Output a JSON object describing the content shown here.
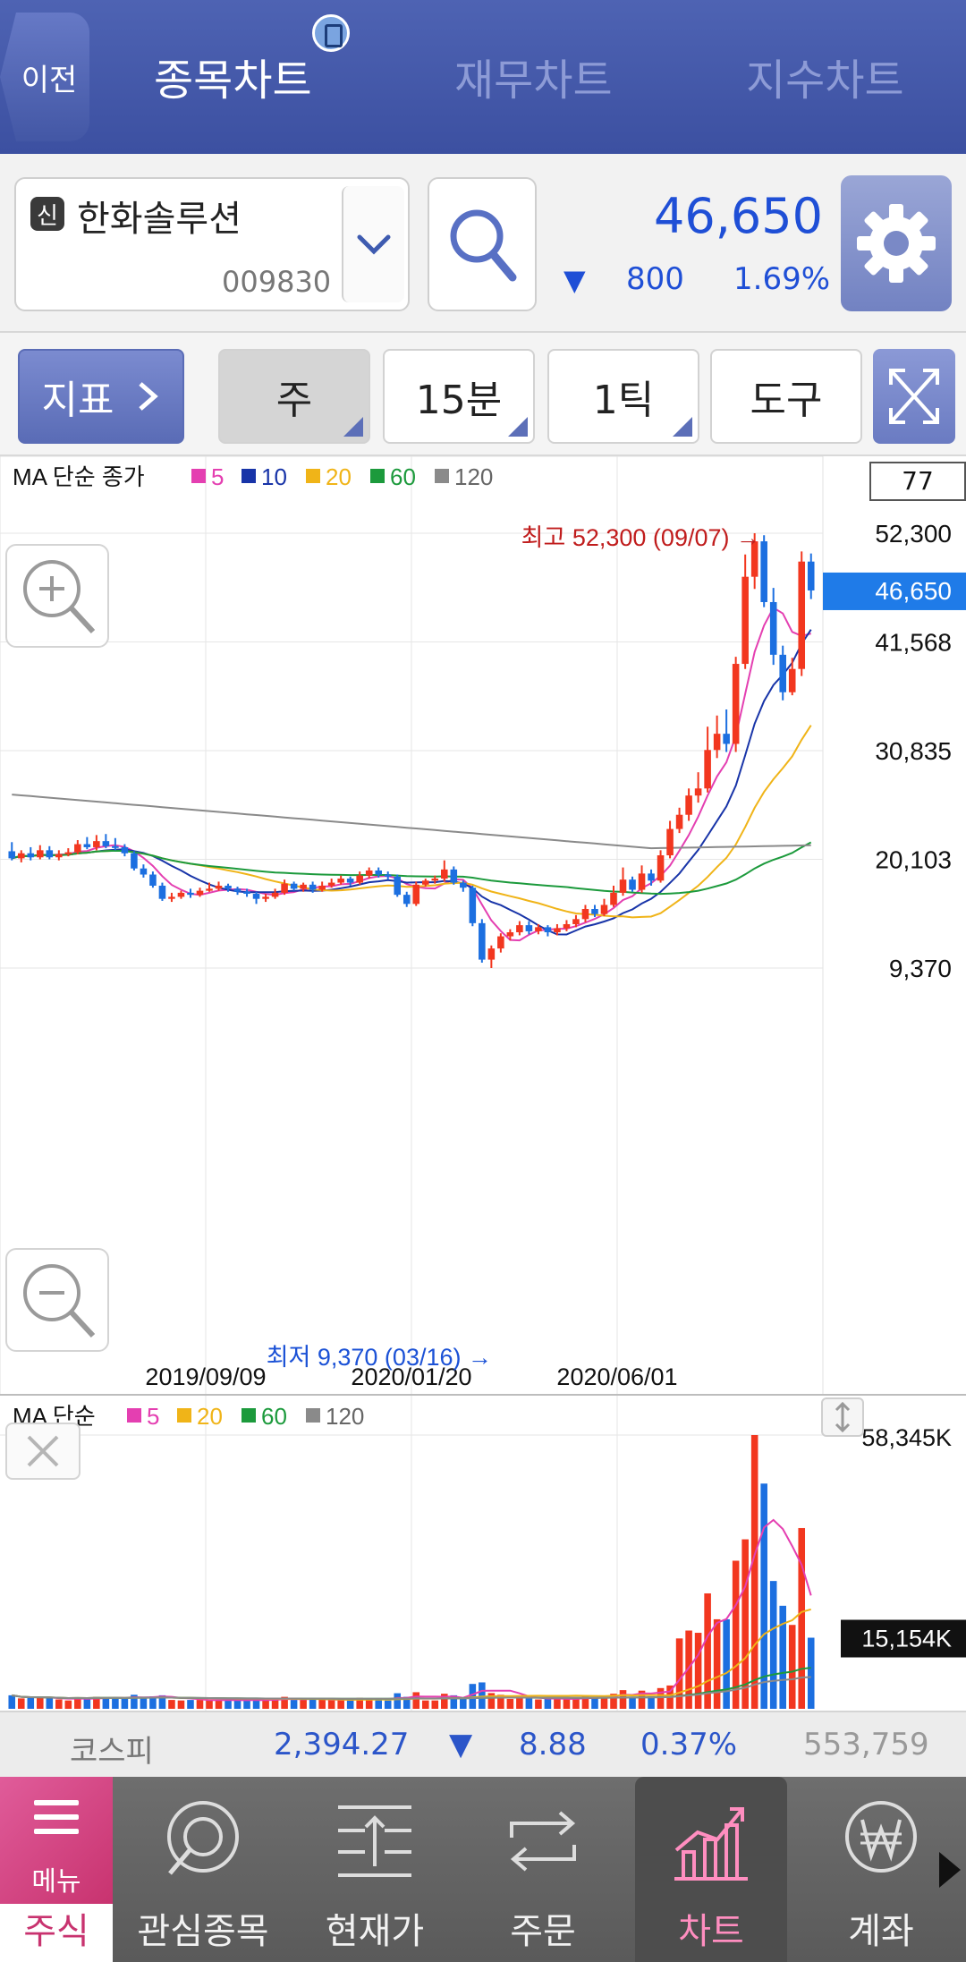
{
  "header": {
    "back_label": "이전",
    "tabs": [
      "종목차트",
      "재무차트",
      "지수차트"
    ],
    "active_tab": 0
  },
  "stock": {
    "badge": "신",
    "name": "한화솔루션",
    "code": "009830",
    "price": "46,650",
    "change": "800",
    "change_pct": "1.69%",
    "direction": "down"
  },
  "toolbar": {
    "indicator_label": "지표",
    "period_week": "주",
    "period_min": "15분",
    "period_tick": "1틱",
    "tools_label": "도구"
  },
  "chart_header": {
    "count": "77",
    "price_legend": {
      "title": "MA 단순 종가",
      "items": [
        {
          "label": "5",
          "color": "#e43fb1"
        },
        {
          "label": "10",
          "color": "#1834a8"
        },
        {
          "label": "20",
          "color": "#f0b418"
        },
        {
          "label": "60",
          "color": "#1c9a3c"
        },
        {
          "label": "120",
          "color": "#8a8a8a"
        }
      ]
    },
    "volume_legend": {
      "title": "MA 단순",
      "items": [
        {
          "label": "5",
          "color": "#e43fb1"
        },
        {
          "label": "20",
          "color": "#f0b418"
        },
        {
          "label": "60",
          "color": "#1c9a3c"
        },
        {
          "label": "120",
          "color": "#8a8a8a"
        }
      ]
    }
  },
  "chart_data": {
    "type": "candlestick",
    "price_axis_ticks": [
      "52,300",
      "41,568",
      "30,835",
      "20,103",
      "9,370"
    ],
    "price_axis_values": [
      52300,
      41568,
      30835,
      20103,
      9370
    ],
    "current_price_label": "46,650",
    "x_tick_labels": [
      "2019/09/09",
      "2020/01/20",
      "2020/06/01"
    ],
    "high_annotation": "최고 52,300 (09/07) →",
    "low_annotation": "최저 9,370 (03/16) →",
    "volume_axis_ticks": [
      "58,345K",
      "15,154K"
    ],
    "candles": [
      [
        20900,
        20200,
        21800,
        20000
      ],
      [
        20200,
        20700,
        21000,
        19800
      ],
      [
        20700,
        20300,
        21300,
        20000
      ],
      [
        20300,
        21000,
        21500,
        20100
      ],
      [
        21000,
        20300,
        21400,
        20100
      ],
      [
        20300,
        20600,
        21000,
        20000
      ],
      [
        20600,
        20800,
        21200,
        20400
      ],
      [
        20800,
        21600,
        22000,
        20600
      ],
      [
        21600,
        21300,
        22300,
        21100
      ],
      [
        21300,
        21900,
        22500,
        21000
      ],
      [
        21900,
        21400,
        22600,
        21200
      ],
      [
        21400,
        21300,
        22200,
        21000
      ],
      [
        21300,
        20700,
        21600,
        20400
      ],
      [
        20700,
        19200,
        20900,
        19000
      ],
      [
        19200,
        18600,
        19600,
        18300
      ],
      [
        18600,
        17500,
        18900,
        17300
      ],
      [
        17500,
        16200,
        17800,
        16000
      ],
      [
        16200,
        16400,
        16800,
        15900
      ],
      [
        16400,
        16800,
        17000,
        16200
      ],
      [
        16800,
        16600,
        17200,
        16300
      ],
      [
        16600,
        17000,
        17300,
        16400
      ],
      [
        17000,
        17200,
        17800,
        16900
      ],
      [
        17200,
        17500,
        17900,
        17000
      ],
      [
        17500,
        17200,
        17700,
        16900
      ],
      [
        17200,
        16900,
        17400,
        16600
      ],
      [
        16900,
        16700,
        17200,
        16400
      ],
      [
        16700,
        16200,
        16900,
        15700
      ],
      [
        16200,
        16400,
        16700,
        15900
      ],
      [
        16400,
        16800,
        17200,
        16200
      ],
      [
        16800,
        17700,
        18100,
        16600
      ],
      [
        17700,
        17200,
        17900,
        17000
      ],
      [
        17200,
        17600,
        17800,
        16900
      ],
      [
        17600,
        17100,
        17900,
        16800
      ],
      [
        17100,
        17500,
        17900,
        16900
      ],
      [
        17500,
        17800,
        18200,
        17300
      ],
      [
        17800,
        18200,
        18500,
        17600
      ],
      [
        18200,
        17800,
        18400,
        17500
      ],
      [
        17800,
        18500,
        18900,
        17600
      ],
      [
        18500,
        19000,
        19300,
        18200
      ],
      [
        19000,
        18600,
        19300,
        18300
      ],
      [
        18600,
        18400,
        18900,
        18100
      ],
      [
        18400,
        16600,
        18600,
        16400
      ],
      [
        16600,
        15700,
        16900,
        15400
      ],
      [
        15700,
        17600,
        17900,
        15500
      ],
      [
        17600,
        18000,
        18200,
        17400
      ],
      [
        18000,
        18200,
        18500,
        17700
      ],
      [
        18200,
        19100,
        20000,
        17900
      ],
      [
        19100,
        17800,
        19400,
        17600
      ],
      [
        17800,
        17300,
        18000,
        16900
      ],
      [
        17300,
        13800,
        17500,
        13500
      ],
      [
        13800,
        10200,
        14200,
        9900
      ],
      [
        10200,
        11300,
        11600,
        9370
      ],
      [
        11300,
        12500,
        12800,
        10900
      ],
      [
        12500,
        12900,
        13200,
        12100
      ],
      [
        12900,
        13600,
        14000,
        12600
      ],
      [
        13600,
        13000,
        14000,
        12700
      ],
      [
        13000,
        13400,
        13700,
        12700
      ],
      [
        13400,
        12900,
        13600,
        12500
      ],
      [
        12900,
        13300,
        13700,
        12600
      ],
      [
        13300,
        13700,
        14100,
        13000
      ],
      [
        13700,
        14200,
        14600,
        13400
      ],
      [
        14200,
        15200,
        15600,
        13900
      ],
      [
        15200,
        14700,
        15600,
        14400
      ],
      [
        14700,
        15600,
        16200,
        14500
      ],
      [
        15600,
        16800,
        17500,
        15400
      ],
      [
        16800,
        18100,
        19300,
        16500
      ],
      [
        18100,
        17100,
        18400,
        16900
      ],
      [
        17100,
        18700,
        19500,
        16800
      ],
      [
        18700,
        18000,
        19100,
        17500
      ],
      [
        18000,
        20500,
        21000,
        17800
      ],
      [
        20500,
        23100,
        23900,
        20200
      ],
      [
        23100,
        24500,
        25200,
        22700
      ],
      [
        24500,
        26400,
        27100,
        23900
      ],
      [
        26400,
        27100,
        28700,
        25700
      ],
      [
        27100,
        30900,
        33200,
        26700
      ],
      [
        30900,
        32500,
        34300,
        30100
      ],
      [
        32500,
        31500,
        34900,
        30700
      ],
      [
        31500,
        39400,
        40100,
        30700
      ],
      [
        39400,
        48000,
        50200,
        38900
      ],
      [
        48000,
        51500,
        52300,
        46800
      ],
      [
        51500,
        45500,
        52100,
        45000
      ],
      [
        45500,
        40300,
        46900,
        39300
      ],
      [
        40300,
        36600,
        41200,
        35800
      ],
      [
        36600,
        38900,
        40000,
        36300
      ],
      [
        38900,
        49500,
        50500,
        38200
      ],
      [
        49500,
        46650,
        50300,
        45800
      ]
    ]
  },
  "index_bar": {
    "name": "코스피",
    "value": "2,394.27",
    "change": "8.88",
    "change_pct": "0.37%",
    "volume": "553,759"
  },
  "bottom_nav": {
    "menu_label": "메뉴",
    "stock_tab": "주식",
    "items": [
      "관심종목",
      "현재가",
      "주문",
      "차트",
      "계좌"
    ],
    "active": "차트"
  }
}
